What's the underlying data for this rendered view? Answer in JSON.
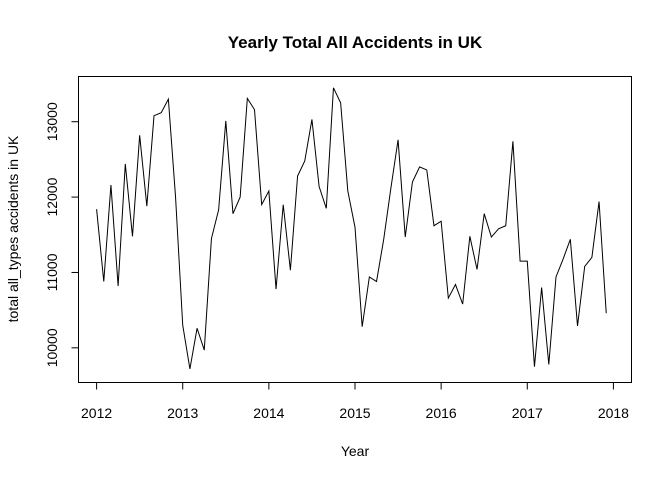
{
  "chart_data": {
    "type": "line",
    "title": "Yearly Total All Accidents in UK",
    "xlabel": "Year",
    "ylabel": "total all_types accidents in UK",
    "xlim": [
      2011.79,
      2018.21
    ],
    "ylim": [
      9540,
      13600
    ],
    "grid": false,
    "x_ticks": [
      2012,
      2013,
      2014,
      2015,
      2016,
      2017,
      2018
    ],
    "x_tick_labels": [
      "2012",
      "2013",
      "2014",
      "2015",
      "2016",
      "2017",
      "2018"
    ],
    "y_ticks": [
      10000,
      11000,
      12000,
      13000
    ],
    "y_tick_labels": [
      "10000",
      "11000",
      "12000",
      "13000"
    ],
    "series": [
      {
        "x_start": 2012,
        "x_step": 0.08333333,
        "values": [
          11840,
          10880,
          12160,
          10820,
          12440,
          11480,
          12820,
          11880,
          13080,
          13120,
          13300,
          12000,
          10300,
          9720,
          10260,
          9970,
          11450,
          11830,
          13010,
          11780,
          12000,
          13310,
          13160,
          11900,
          12080,
          10780,
          11900,
          11030,
          12280,
          12480,
          13030,
          12140,
          11850,
          13450,
          13250,
          12080,
          11600,
          10280,
          10940,
          10880,
          11440,
          12120,
          12760,
          11470,
          12200,
          12400,
          12360,
          11620,
          11680,
          10660,
          10840,
          10580,
          11480,
          11040,
          11780,
          11470,
          11580,
          11620,
          12740,
          11150,
          11150,
          9750,
          10800,
          9780,
          10940,
          11180,
          11440,
          10290,
          11080,
          11200,
          11940,
          10460
        ]
      }
    ]
  }
}
